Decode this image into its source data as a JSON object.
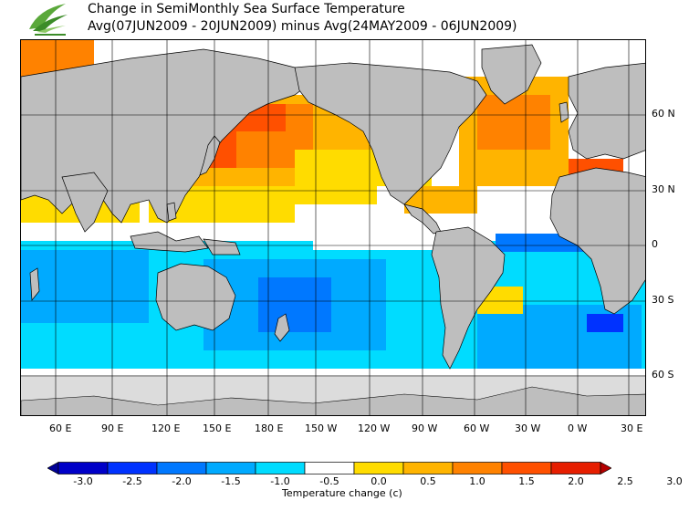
{
  "header": {
    "title": "Change in SemiMonthly Sea Surface Temperature",
    "subtitle": "Avg(07JUN2009 - 20JUN2009) minus Avg(24MAY2009 - 06JUN2009)"
  },
  "map": {
    "lat_labels": [
      "60 N",
      "30 N",
      "0",
      "30 S",
      "60 S"
    ],
    "lon_labels": [
      "60 E",
      "90 E",
      "120 E",
      "150 E",
      "180 E",
      "150 W",
      "120 W",
      "90 W",
      "60 W",
      "30 W",
      "0 W",
      "30 E"
    ],
    "land_color": "#bebebe",
    "ice_color": "#dcdcdc"
  },
  "legend": {
    "ticks": [
      "-3.0",
      "-2.5",
      "-2.0",
      "-1.5",
      "-1.0",
      "-0.5",
      "0.0",
      "0.5",
      "1.0",
      "1.5",
      "2.0",
      "2.5",
      "3.0"
    ],
    "colors": [
      "#000096",
      "#0000c8",
      "#0032ff",
      "#0078ff",
      "#00aaff",
      "#00dcff",
      "#ffffff",
      "#ffdc00",
      "#ffb400",
      "#ff8200",
      "#ff5000",
      "#e61e00",
      "#b40000"
    ],
    "label": "Temperature change  (c)"
  }
}
